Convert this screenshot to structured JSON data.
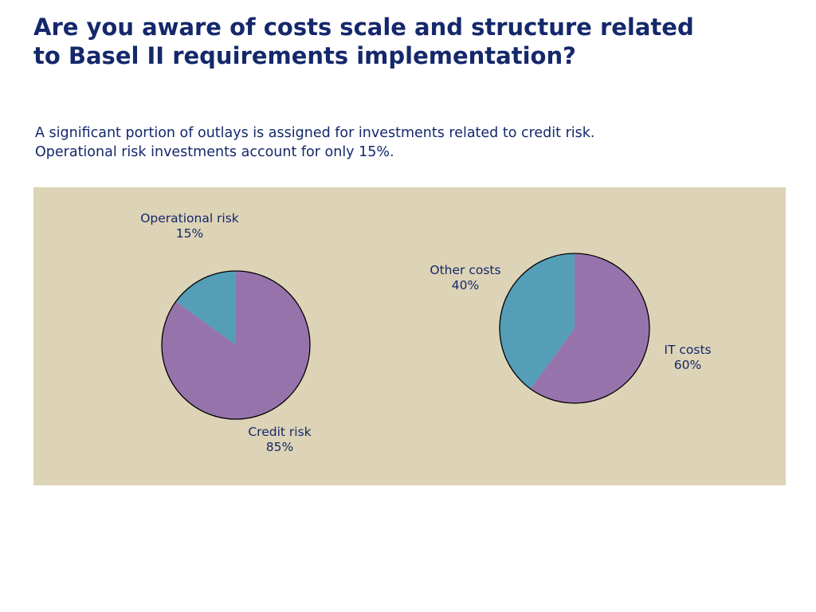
{
  "title": {
    "line1": "Are you aware of costs scale and structure related",
    "line2": "to Basel II requirements implementation?"
  },
  "subtitle": {
    "line1": "A significant portion of outlays is assigned for investments related to credit risk.",
    "line2": "Operational risk investments account for only 15%."
  },
  "colors": {
    "panel_background": "#ddd3b6",
    "purple_slice": "#9773ac",
    "teal_slice": "#549eb8",
    "outline": "#000000",
    "text": "#14286b"
  },
  "chart_data": [
    {
      "type": "pie",
      "slices": [
        {
          "label": "Operational risk",
          "value": 15,
          "display": "15%",
          "color": "#549eb8"
        },
        {
          "label": "Credit risk",
          "value": 85,
          "display": "85%",
          "color": "#9773ac"
        }
      ]
    },
    {
      "type": "pie",
      "slices": [
        {
          "label": "Other costs",
          "value": 40,
          "display": "40%",
          "color": "#549eb8"
        },
        {
          "label": "IT costs",
          "value": 60,
          "display": "60%",
          "color": "#9773ac"
        }
      ]
    }
  ]
}
